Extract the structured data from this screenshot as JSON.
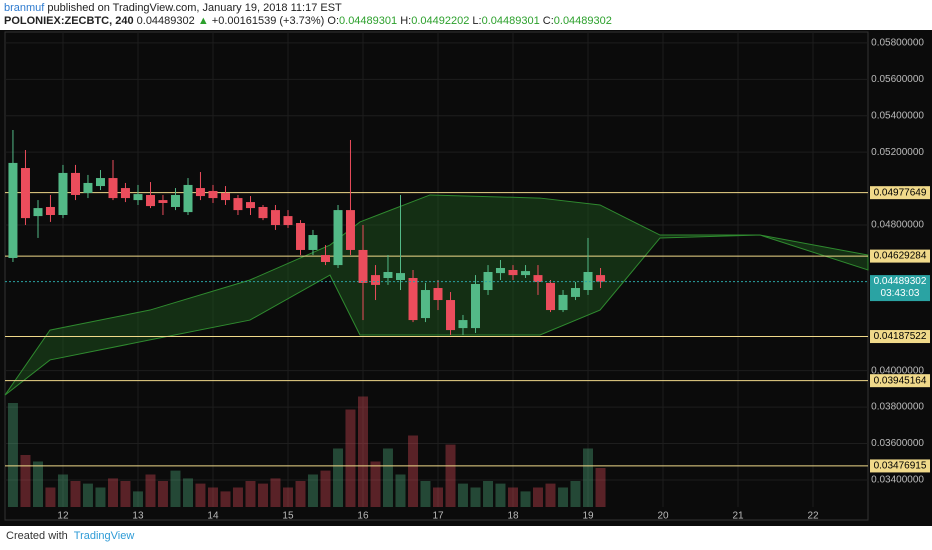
{
  "header": {
    "author": "branmuf",
    "published": "published on TradingView.com, January 19, 2018 11:17 EST",
    "symbol": "POLONIEX:ZECBTC, 240",
    "price": "0.04489302",
    "change": "+0.00161539 (+3.73%)",
    "o_label": "O:",
    "o": "0.04489301",
    "h_label": "H:",
    "h": "0.04492202",
    "l_label": "L:",
    "l": "0.04489301",
    "c_label": "C:",
    "c": "0.04489302"
  },
  "footer": {
    "created": "Created with",
    "brand": "TradingView"
  },
  "chart_data": {
    "type": "candlestick",
    "x": [
      11.333,
      11.5,
      11.667,
      11.833,
      12,
      12.167,
      12.333,
      12.5,
      12.667,
      12.833,
      13,
      13.167,
      13.333,
      13.5,
      13.667,
      13.833,
      14,
      14.167,
      14.333,
      14.5,
      14.667,
      14.833,
      15,
      15.167,
      15.333,
      15.5,
      15.667,
      15.833,
      16,
      16.167,
      16.333,
      16.5,
      16.667,
      16.833,
      17,
      17.167,
      17.333,
      17.5,
      17.667,
      17.833,
      18,
      18.167,
      18.333,
      18.5,
      18.667,
      18.833,
      19,
      19.167
    ],
    "open": [
      0.04619,
      0.05113,
      0.04849,
      0.04899,
      0.04855,
      0.05086,
      0.04976,
      0.05014,
      0.05058,
      0.05003,
      0.04937,
      0.04965,
      0.04937,
      0.04899,
      0.04871,
      0.05003,
      0.04987,
      0.04976,
      0.04948,
      0.04926,
      0.04899,
      0.04882,
      0.04849,
      0.04811,
      0.04663,
      0.04635,
      0.0458,
      0.04882,
      0.04663,
      0.04525,
      0.04509,
      0.04498,
      0.04509,
      0.04289,
      0.04454,
      0.04388,
      0.04234,
      0.04234,
      0.04443,
      0.04536,
      0.04553,
      0.04525,
      0.04525,
      0.04482,
      0.04333,
      0.04405,
      0.04443,
      0.04525
    ],
    "high": [
      0.05322,
      0.05212,
      0.04937,
      0.04965,
      0.0513,
      0.0513,
      0.05075,
      0.05102,
      0.05157,
      0.05031,
      0.0502,
      0.05036,
      0.04965,
      0.05003,
      0.05058,
      0.05091,
      0.0502,
      0.05014,
      0.04965,
      0.04959,
      0.0491,
      0.0491,
      0.04882,
      0.04827,
      0.04773,
      0.0469,
      0.0491,
      0.05267,
      0.048,
      0.0458,
      0.04635,
      0.04965,
      0.04553,
      0.04482,
      0.04498,
      0.04432,
      0.04306,
      0.04525,
      0.0458,
      0.04608,
      0.0458,
      0.0458,
      0.0458,
      0.04498,
      0.04443,
      0.04487,
      0.04729,
      0.04564
    ],
    "low": [
      0.04597,
      0.048,
      0.04729,
      0.04817,
      0.04838,
      0.04937,
      0.04948,
      0.04992,
      0.04937,
      0.04926,
      0.0491,
      0.04893,
      0.04855,
      0.04882,
      0.04855,
      0.04937,
      0.04921,
      0.0491,
      0.04855,
      0.04855,
      0.04827,
      0.04773,
      0.04784,
      0.04635,
      0.04635,
      0.0458,
      0.04564,
      0.04635,
      0.04278,
      0.04388,
      0.04471,
      0.04443,
      0.04267,
      0.04267,
      0.04333,
      0.04196,
      0.04196,
      0.04207,
      0.04416,
      0.04498,
      0.04498,
      0.04509,
      0.04416,
      0.04322,
      0.04322,
      0.04388,
      0.04416,
      0.04454
    ],
    "close": [
      0.05141,
      0.04838,
      0.04893,
      0.04855,
      0.05086,
      0.04965,
      0.05031,
      0.05058,
      0.04948,
      0.04948,
      0.0497,
      0.04904,
      0.04921,
      0.04965,
      0.0502,
      0.04959,
      0.04948,
      0.04937,
      0.04882,
      0.04893,
      0.04838,
      0.048,
      0.048,
      0.04663,
      0.04745,
      0.04597,
      0.04882,
      0.04663,
      0.04482,
      0.04471,
      0.04542,
      0.04536,
      0.04278,
      0.04443,
      0.04388,
      0.04223,
      0.04278,
      0.04476,
      0.04542,
      0.04564,
      0.04525,
      0.04547,
      0.04487,
      0.04333,
      0.04416,
      0.04454,
      0.04542,
      0.04489
    ],
    "up_color": "#53b987",
    "down_color": "#eb4d5c",
    "volume": [
      80,
      40,
      35,
      15,
      25,
      20,
      18,
      15,
      22,
      20,
      12,
      25,
      20,
      28,
      22,
      18,
      15,
      12,
      15,
      20,
      18,
      22,
      15,
      20,
      25,
      28,
      45,
      75,
      85,
      35,
      45,
      25,
      55,
      20,
      15,
      48,
      18,
      15,
      20,
      18,
      15,
      12,
      15,
      18,
      15,
      20,
      45,
      30
    ],
    "volume_lim": [
      0,
      100
    ],
    "cloud": {
      "x": [
        11.227,
        11.827,
        13.16,
        14.493,
        15.56,
        15.96,
        16.893,
        18.36,
        19.16,
        19.96,
        21.293,
        22.733
      ],
      "upper": [
        0.03866,
        0.04223,
        0.04333,
        0.04498,
        0.0469,
        0.04817,
        0.04965,
        0.04948,
        0.0491,
        0.04745,
        0.04745,
        0.04635
      ],
      "lower": [
        0.03866,
        0.04059,
        0.04169,
        0.04278,
        0.04525,
        0.04196,
        0.04196,
        0.04196,
        0.04333,
        0.04729,
        0.04745,
        0.04553
      ],
      "color": "#1f5a1f"
    },
    "xlim": [
      11.227,
      22.733
    ],
    "xticks": [
      12,
      13,
      14,
      15,
      16,
      17,
      18,
      19,
      20,
      21,
      22
    ],
    "ylim": [
      0.0318,
      0.0586
    ],
    "yticks": [
      {
        "value": 0.034,
        "label": "0.03400000"
      },
      {
        "value": 0.036,
        "label": "0.03600000"
      },
      {
        "value": 0.038,
        "label": "0.03800000"
      },
      {
        "value": 0.04,
        "label": "0.04000000"
      },
      {
        "value": 0.048,
        "label": "0.04800000"
      },
      {
        "value": 0.052,
        "label": "0.05200000"
      },
      {
        "value": 0.054,
        "label": "0.05400000"
      },
      {
        "value": 0.056,
        "label": "0.05600000"
      },
      {
        "value": 0.058,
        "label": "0.05800000"
      }
    ],
    "grid": true,
    "levels": [
      0.04977649,
      0.04629284,
      0.04187522,
      0.03945164,
      0.03476915
    ],
    "level_color": "#f0d98a",
    "last_price": 0.04489302,
    "last_color": "#2aa3a3",
    "countdown": "03:43:03"
  }
}
